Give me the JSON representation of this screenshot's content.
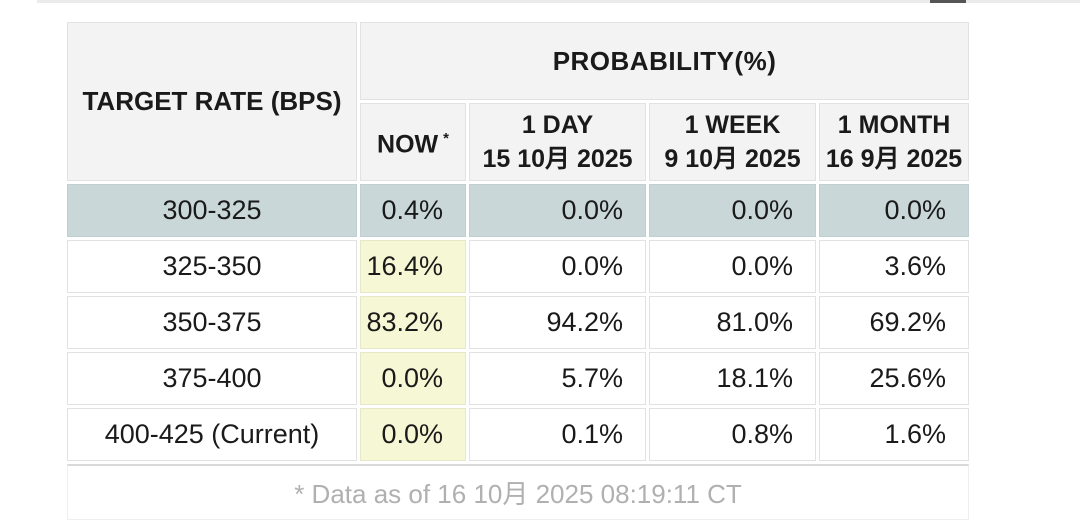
{
  "colors": {
    "row_highlight": "#c9d7d9",
    "now_highlight": "#f6f7d4",
    "header_bg": "#f3f3f3",
    "cell_border": "#e2e2e2",
    "footer_text": "#b0b0b0",
    "top_strip": "#ebebeb",
    "top_strip_dark": "#555555",
    "text_primary": "#1a1a1a"
  },
  "table": {
    "corner_header": "TARGET RATE (BPS)",
    "probability_header": "PROBABILITY(%)",
    "columns": [
      {
        "title": "NOW",
        "note_mark": "*"
      },
      {
        "title": "1 DAY",
        "date": "15 10月 2025"
      },
      {
        "title": "1 WEEK",
        "date": "9 10月 2025"
      },
      {
        "title": "1 MONTH",
        "date": "16 9月 2025"
      }
    ],
    "rows": [
      {
        "target": "300-325",
        "now": "0.4%",
        "one_day": "0.0%",
        "one_week": "0.0%",
        "one_month": "0.0%"
      },
      {
        "target": "325-350",
        "now": "16.4%",
        "one_day": "0.0%",
        "one_week": "0.0%",
        "one_month": "3.6%"
      },
      {
        "target": "350-375",
        "now": "83.2%",
        "one_day": "94.2%",
        "one_week": "81.0%",
        "one_month": "69.2%"
      },
      {
        "target": "375-400",
        "now": "0.0%",
        "one_day": "5.7%",
        "one_week": "18.1%",
        "one_month": "25.6%"
      },
      {
        "target": "400-425 (Current)",
        "now": "0.0%",
        "one_day": "0.1%",
        "one_week": "0.8%",
        "one_month": "1.6%"
      }
    ],
    "footnote": "* Data as of 16 10月 2025 08:19:11 CT"
  }
}
